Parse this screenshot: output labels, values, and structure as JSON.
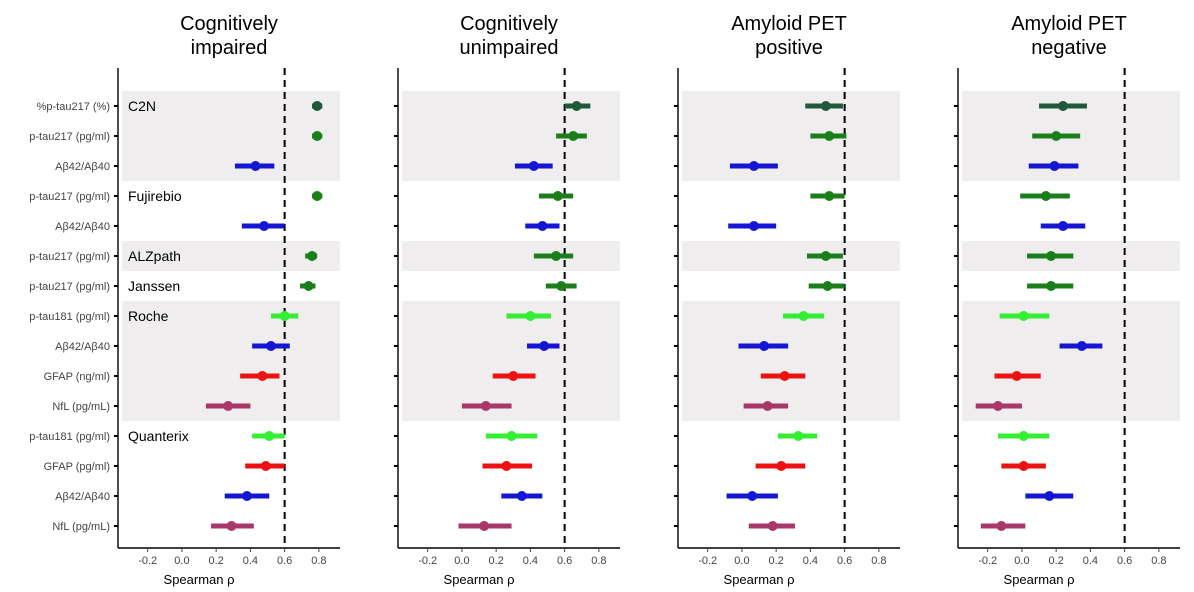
{
  "chart_data": {
    "type": "forest",
    "xlabel": "Spearman ρ",
    "xlim": [
      -0.35,
      0.9
    ],
    "xticks": [
      "-0.2",
      "0.0",
      "0.2",
      "0.4",
      "0.6",
      "0.8"
    ],
    "xtick_values": [
      -0.2,
      0,
      0.2,
      0.4,
      0.6,
      0.8
    ],
    "reference_line": 0.6,
    "band_groups": [
      [
        0,
        2
      ],
      [
        5,
        5
      ],
      [
        7,
        10
      ]
    ],
    "colors": {
      "dark_green": "#1e5a3a",
      "green": "#1a7f1a",
      "blue": "#1515d4",
      "light_green": "#33ee33",
      "red": "#ee1111",
      "maroon": "#a8386a"
    },
    "rows": [
      {
        "label": "%p-tau217 (%)",
        "assay": "C2N",
        "color": "dark_green"
      },
      {
        "label": "p-tau217 (pg/ml)",
        "assay": "",
        "color": "green"
      },
      {
        "label": "Aβ42/Aβ40",
        "assay": "",
        "color": "blue"
      },
      {
        "label": "p-tau217 (pg/ml)",
        "assay": "Fujirebio",
        "color": "green"
      },
      {
        "label": "Aβ42/Aβ40",
        "assay": "",
        "color": "blue"
      },
      {
        "label": "p-tau217 (pg/ml)",
        "assay": "ALZpath",
        "color": "green"
      },
      {
        "label": "p-tau217 (pg/ml)",
        "assay": "Janssen",
        "color": "green"
      },
      {
        "label": "p-tau181 (pg/ml)",
        "assay": "Roche",
        "color": "light_green"
      },
      {
        "label": "Aβ42/Aβ40",
        "assay": "",
        "color": "blue"
      },
      {
        "label": "GFAP (ng/ml)",
        "assay": "",
        "color": "red"
      },
      {
        "label": "NfL (pg/mL)",
        "assay": "",
        "color": "maroon"
      },
      {
        "label": "p-tau181 (pg/ml)",
        "assay": "Quanterix",
        "color": "light_green"
      },
      {
        "label": "GFAP (pg/ml)",
        "assay": "",
        "color": "red"
      },
      {
        "label": "Aβ42/Aβ40",
        "assay": "",
        "color": "blue"
      },
      {
        "label": "NfL (pg/mL)",
        "assay": "",
        "color": "maroon"
      }
    ],
    "panels": [
      {
        "title": [
          "Cognitively",
          "impaired"
        ],
        "estimates": [
          {
            "est": 0.79,
            "lo": 0.76,
            "hi": 0.82
          },
          {
            "est": 0.79,
            "lo": 0.76,
            "hi": 0.82
          },
          {
            "est": 0.43,
            "lo": 0.31,
            "hi": 0.54
          },
          {
            "est": 0.79,
            "lo": 0.76,
            "hi": 0.82
          },
          {
            "est": 0.48,
            "lo": 0.35,
            "hi": 0.6
          },
          {
            "est": 0.76,
            "lo": 0.72,
            "hi": 0.79
          },
          {
            "est": 0.74,
            "lo": 0.69,
            "hi": 0.78
          },
          {
            "est": 0.6,
            "lo": 0.52,
            "hi": 0.68
          },
          {
            "est": 0.52,
            "lo": 0.41,
            "hi": 0.63
          },
          {
            "est": 0.47,
            "lo": 0.34,
            "hi": 0.57
          },
          {
            "est": 0.27,
            "lo": 0.14,
            "hi": 0.4
          },
          {
            "est": 0.51,
            "lo": 0.41,
            "hi": 0.6
          },
          {
            "est": 0.49,
            "lo": 0.37,
            "hi": 0.6
          },
          {
            "est": 0.38,
            "lo": 0.25,
            "hi": 0.51
          },
          {
            "est": 0.29,
            "lo": 0.17,
            "hi": 0.42
          }
        ]
      },
      {
        "title": [
          "Cognitively",
          "unimpaired"
        ],
        "estimates": [
          {
            "est": 0.67,
            "lo": 0.6,
            "hi": 0.75
          },
          {
            "est": 0.65,
            "lo": 0.55,
            "hi": 0.73
          },
          {
            "est": 0.42,
            "lo": 0.31,
            "hi": 0.53
          },
          {
            "est": 0.56,
            "lo": 0.45,
            "hi": 0.65
          },
          {
            "est": 0.47,
            "lo": 0.37,
            "hi": 0.57
          },
          {
            "est": 0.55,
            "lo": 0.42,
            "hi": 0.65
          },
          {
            "est": 0.58,
            "lo": 0.49,
            "hi": 0.67
          },
          {
            "est": 0.4,
            "lo": 0.26,
            "hi": 0.52
          },
          {
            "est": 0.48,
            "lo": 0.38,
            "hi": 0.57
          },
          {
            "est": 0.3,
            "lo": 0.18,
            "hi": 0.43
          },
          {
            "est": 0.14,
            "lo": 0.0,
            "hi": 0.29
          },
          {
            "est": 0.29,
            "lo": 0.14,
            "hi": 0.44
          },
          {
            "est": 0.26,
            "lo": 0.12,
            "hi": 0.41
          },
          {
            "est": 0.35,
            "lo": 0.23,
            "hi": 0.47
          },
          {
            "est": 0.13,
            "lo": -0.02,
            "hi": 0.29
          }
        ]
      },
      {
        "title": [
          "Amyloid PET",
          "positive"
        ],
        "estimates": [
          {
            "est": 0.49,
            "lo": 0.37,
            "hi": 0.59
          },
          {
            "est": 0.51,
            "lo": 0.4,
            "hi": 0.61
          },
          {
            "est": 0.07,
            "lo": -0.07,
            "hi": 0.21
          },
          {
            "est": 0.51,
            "lo": 0.4,
            "hi": 0.6
          },
          {
            "est": 0.07,
            "lo": -0.08,
            "hi": 0.2
          },
          {
            "est": 0.49,
            "lo": 0.38,
            "hi": 0.59
          },
          {
            "est": 0.5,
            "lo": 0.39,
            "hi": 0.6
          },
          {
            "est": 0.36,
            "lo": 0.24,
            "hi": 0.48
          },
          {
            "est": 0.13,
            "lo": -0.02,
            "hi": 0.27
          },
          {
            "est": 0.25,
            "lo": 0.11,
            "hi": 0.37
          },
          {
            "est": 0.15,
            "lo": 0.01,
            "hi": 0.27
          },
          {
            "est": 0.33,
            "lo": 0.21,
            "hi": 0.44
          },
          {
            "est": 0.23,
            "lo": 0.08,
            "hi": 0.37
          },
          {
            "est": 0.06,
            "lo": -0.09,
            "hi": 0.21
          },
          {
            "est": 0.18,
            "lo": 0.04,
            "hi": 0.31
          }
        ]
      },
      {
        "title": [
          "Amyloid PET",
          "negative"
        ],
        "estimates": [
          {
            "est": 0.24,
            "lo": 0.1,
            "hi": 0.38
          },
          {
            "est": 0.2,
            "lo": 0.06,
            "hi": 0.34
          },
          {
            "est": 0.19,
            "lo": 0.04,
            "hi": 0.33
          },
          {
            "est": 0.14,
            "lo": -0.01,
            "hi": 0.28
          },
          {
            "est": 0.24,
            "lo": 0.11,
            "hi": 0.37
          },
          {
            "est": 0.17,
            "lo": 0.03,
            "hi": 0.3
          },
          {
            "est": 0.17,
            "lo": 0.03,
            "hi": 0.3
          },
          {
            "est": 0.01,
            "lo": -0.13,
            "hi": 0.16
          },
          {
            "est": 0.35,
            "lo": 0.22,
            "hi": 0.47
          },
          {
            "est": -0.03,
            "lo": -0.16,
            "hi": 0.11
          },
          {
            "est": -0.14,
            "lo": -0.27,
            "hi": 0.0
          },
          {
            "est": 0.01,
            "lo": -0.14,
            "hi": 0.16
          },
          {
            "est": 0.01,
            "lo": -0.12,
            "hi": 0.14
          },
          {
            "est": 0.16,
            "lo": 0.02,
            "hi": 0.3
          },
          {
            "est": -0.12,
            "lo": -0.24,
            "hi": 0.02
          }
        ]
      }
    ]
  }
}
